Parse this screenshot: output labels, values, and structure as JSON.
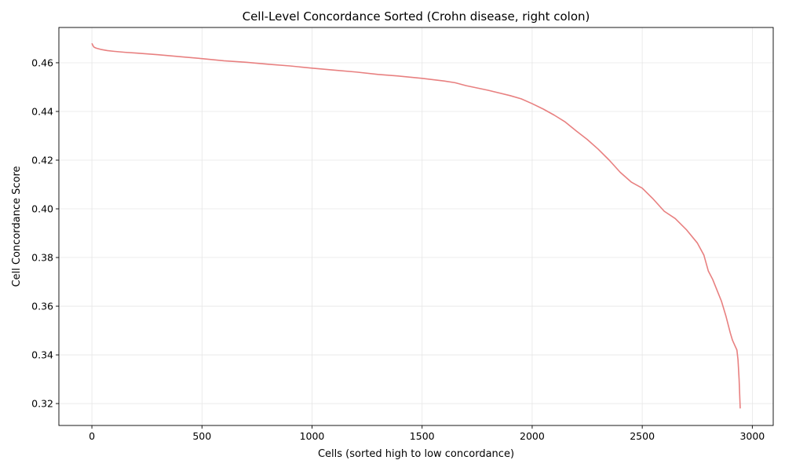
{
  "chart_data": {
    "type": "line",
    "title": "Cell-Level Concordance Sorted (Crohn disease, right colon)",
    "xlabel": "Cells (sorted high to low concordance)",
    "ylabel": "Cell Concordance Score",
    "xlim": [
      -150,
      3095
    ],
    "ylim": [
      0.311,
      0.4745
    ],
    "xticks": [
      0,
      500,
      1000,
      1500,
      2000,
      2500,
      3000
    ],
    "yticks": [
      0.32,
      0.34,
      0.36,
      0.38,
      0.4,
      0.42,
      0.44,
      0.46
    ],
    "ytick_labels": [
      "0.32",
      "0.34",
      "0.36",
      "0.38",
      "0.40",
      "0.42",
      "0.44",
      "0.46"
    ],
    "grid": true,
    "line_color": "#e88080",
    "series": [
      {
        "x": [
          0,
          5,
          10,
          20,
          40,
          70,
          100,
          150,
          200,
          300,
          400,
          500,
          600,
          700,
          800,
          900,
          1000,
          1100,
          1200,
          1300,
          1400,
          1500,
          1600,
          1650,
          1700,
          1800,
          1900,
          1950,
          2000,
          2050,
          2100,
          2150,
          2200,
          2250,
          2300,
          2350,
          2400,
          2450,
          2500,
          2550,
          2600,
          2650,
          2700,
          2750,
          2780,
          2800,
          2820,
          2840,
          2860,
          2880,
          2900,
          2910,
          2920,
          2930,
          2935,
          2940,
          2945
        ],
        "y": [
          0.468,
          0.467,
          0.4664,
          0.466,
          0.4655,
          0.465,
          0.4647,
          0.4643,
          0.464,
          0.4633,
          0.4625,
          0.4617,
          0.4608,
          0.4602,
          0.4594,
          0.4587,
          0.4578,
          0.457,
          0.4562,
          0.4552,
          0.4545,
          0.4536,
          0.4525,
          0.4518,
          0.4506,
          0.4487,
          0.4465,
          0.4452,
          0.4432,
          0.441,
          0.4385,
          0.4357,
          0.432,
          0.4285,
          0.4245,
          0.42,
          0.415,
          0.411,
          0.4085,
          0.404,
          0.399,
          0.396,
          0.3915,
          0.386,
          0.381,
          0.3745,
          0.371,
          0.3665,
          0.362,
          0.356,
          0.349,
          0.346,
          0.344,
          0.342,
          0.338,
          0.33,
          0.318
        ]
      }
    ]
  }
}
